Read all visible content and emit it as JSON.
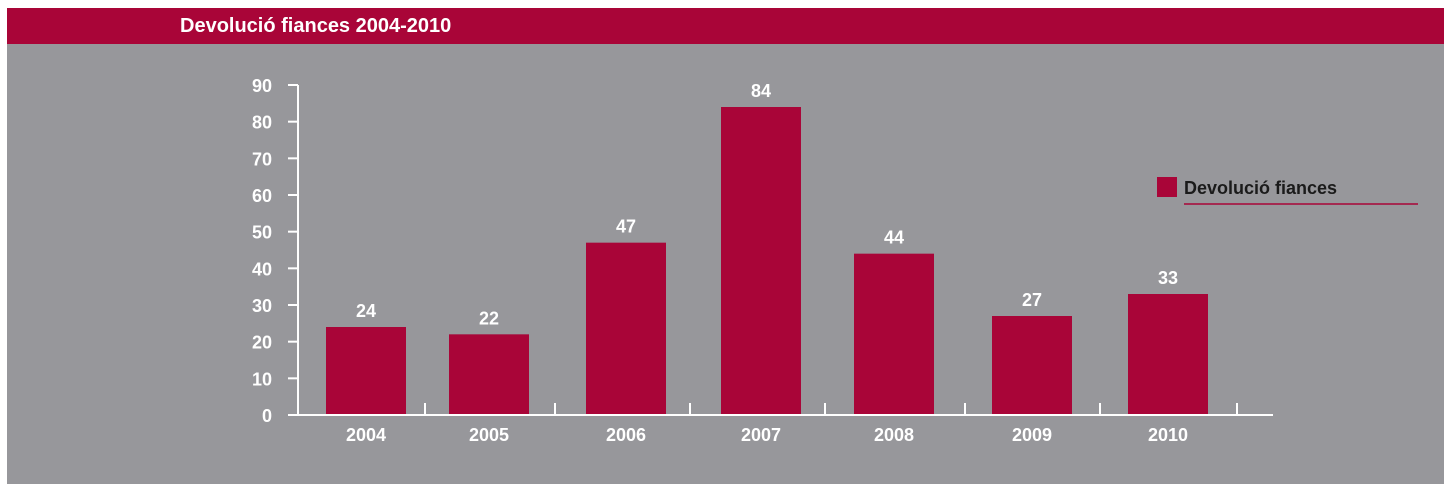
{
  "colors": {
    "background": "#97979b",
    "bar": "#a90538",
    "header": "#a90538",
    "axis": "#ffffff",
    "legend_text": "#1b1b1b"
  },
  "chart_data": {
    "type": "bar",
    "title": "Devolució fiances 2004-2010",
    "categories": [
      "2004",
      "2005",
      "2006",
      "2007",
      "2008",
      "2009",
      "2010"
    ],
    "series": [
      {
        "name": "Devolució fiances",
        "values": [
          24,
          22,
          47,
          84,
          44,
          27,
          33
        ]
      }
    ],
    "data_labels": [
      "24",
      "22",
      "47",
      "84",
      "44",
      "27",
      "33"
    ],
    "ylim": [
      0,
      90
    ],
    "yticks": [
      "0",
      "10",
      "20",
      "30",
      "40",
      "50",
      "60",
      "70",
      "80",
      "90"
    ],
    "grid": false,
    "legend": {
      "label": "Devolució fiances",
      "placement": "right"
    }
  }
}
